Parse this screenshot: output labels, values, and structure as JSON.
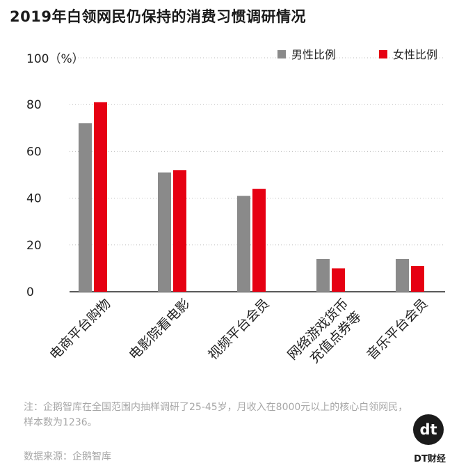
{
  "title": "2019年白领网民仍保持的消费习惯调研情况",
  "note": "注：企鹅智库在全国范围内抽样调研了25-45岁，月收入在8000元以上的核心白领网民，样本数为1236。",
  "source": "数据来源：企鹅智库",
  "logo": {
    "mark": "dt",
    "text": "DT财经"
  },
  "colors": {
    "male": "#8a8a8a",
    "female": "#e60012"
  },
  "chart_data": {
    "type": "bar",
    "title": "2019年白领网民仍保持的消费习惯调研情况",
    "ylabel": "100（%）",
    "ylim": [
      0,
      100
    ],
    "yticks": [
      0,
      20,
      40,
      60,
      80
    ],
    "grid": true,
    "legend": "top-right",
    "categories": [
      "电商平台购物",
      "电影院看电影",
      "视频平台会员",
      [
        "网络游戏货币",
        "充值点券等"
      ],
      "音乐平台会员"
    ],
    "series": [
      {
        "name": "男性比例",
        "values": [
          72,
          51,
          41,
          14,
          14
        ]
      },
      {
        "name": "女性比例",
        "values": [
          81,
          52,
          44,
          10,
          11
        ]
      }
    ]
  }
}
